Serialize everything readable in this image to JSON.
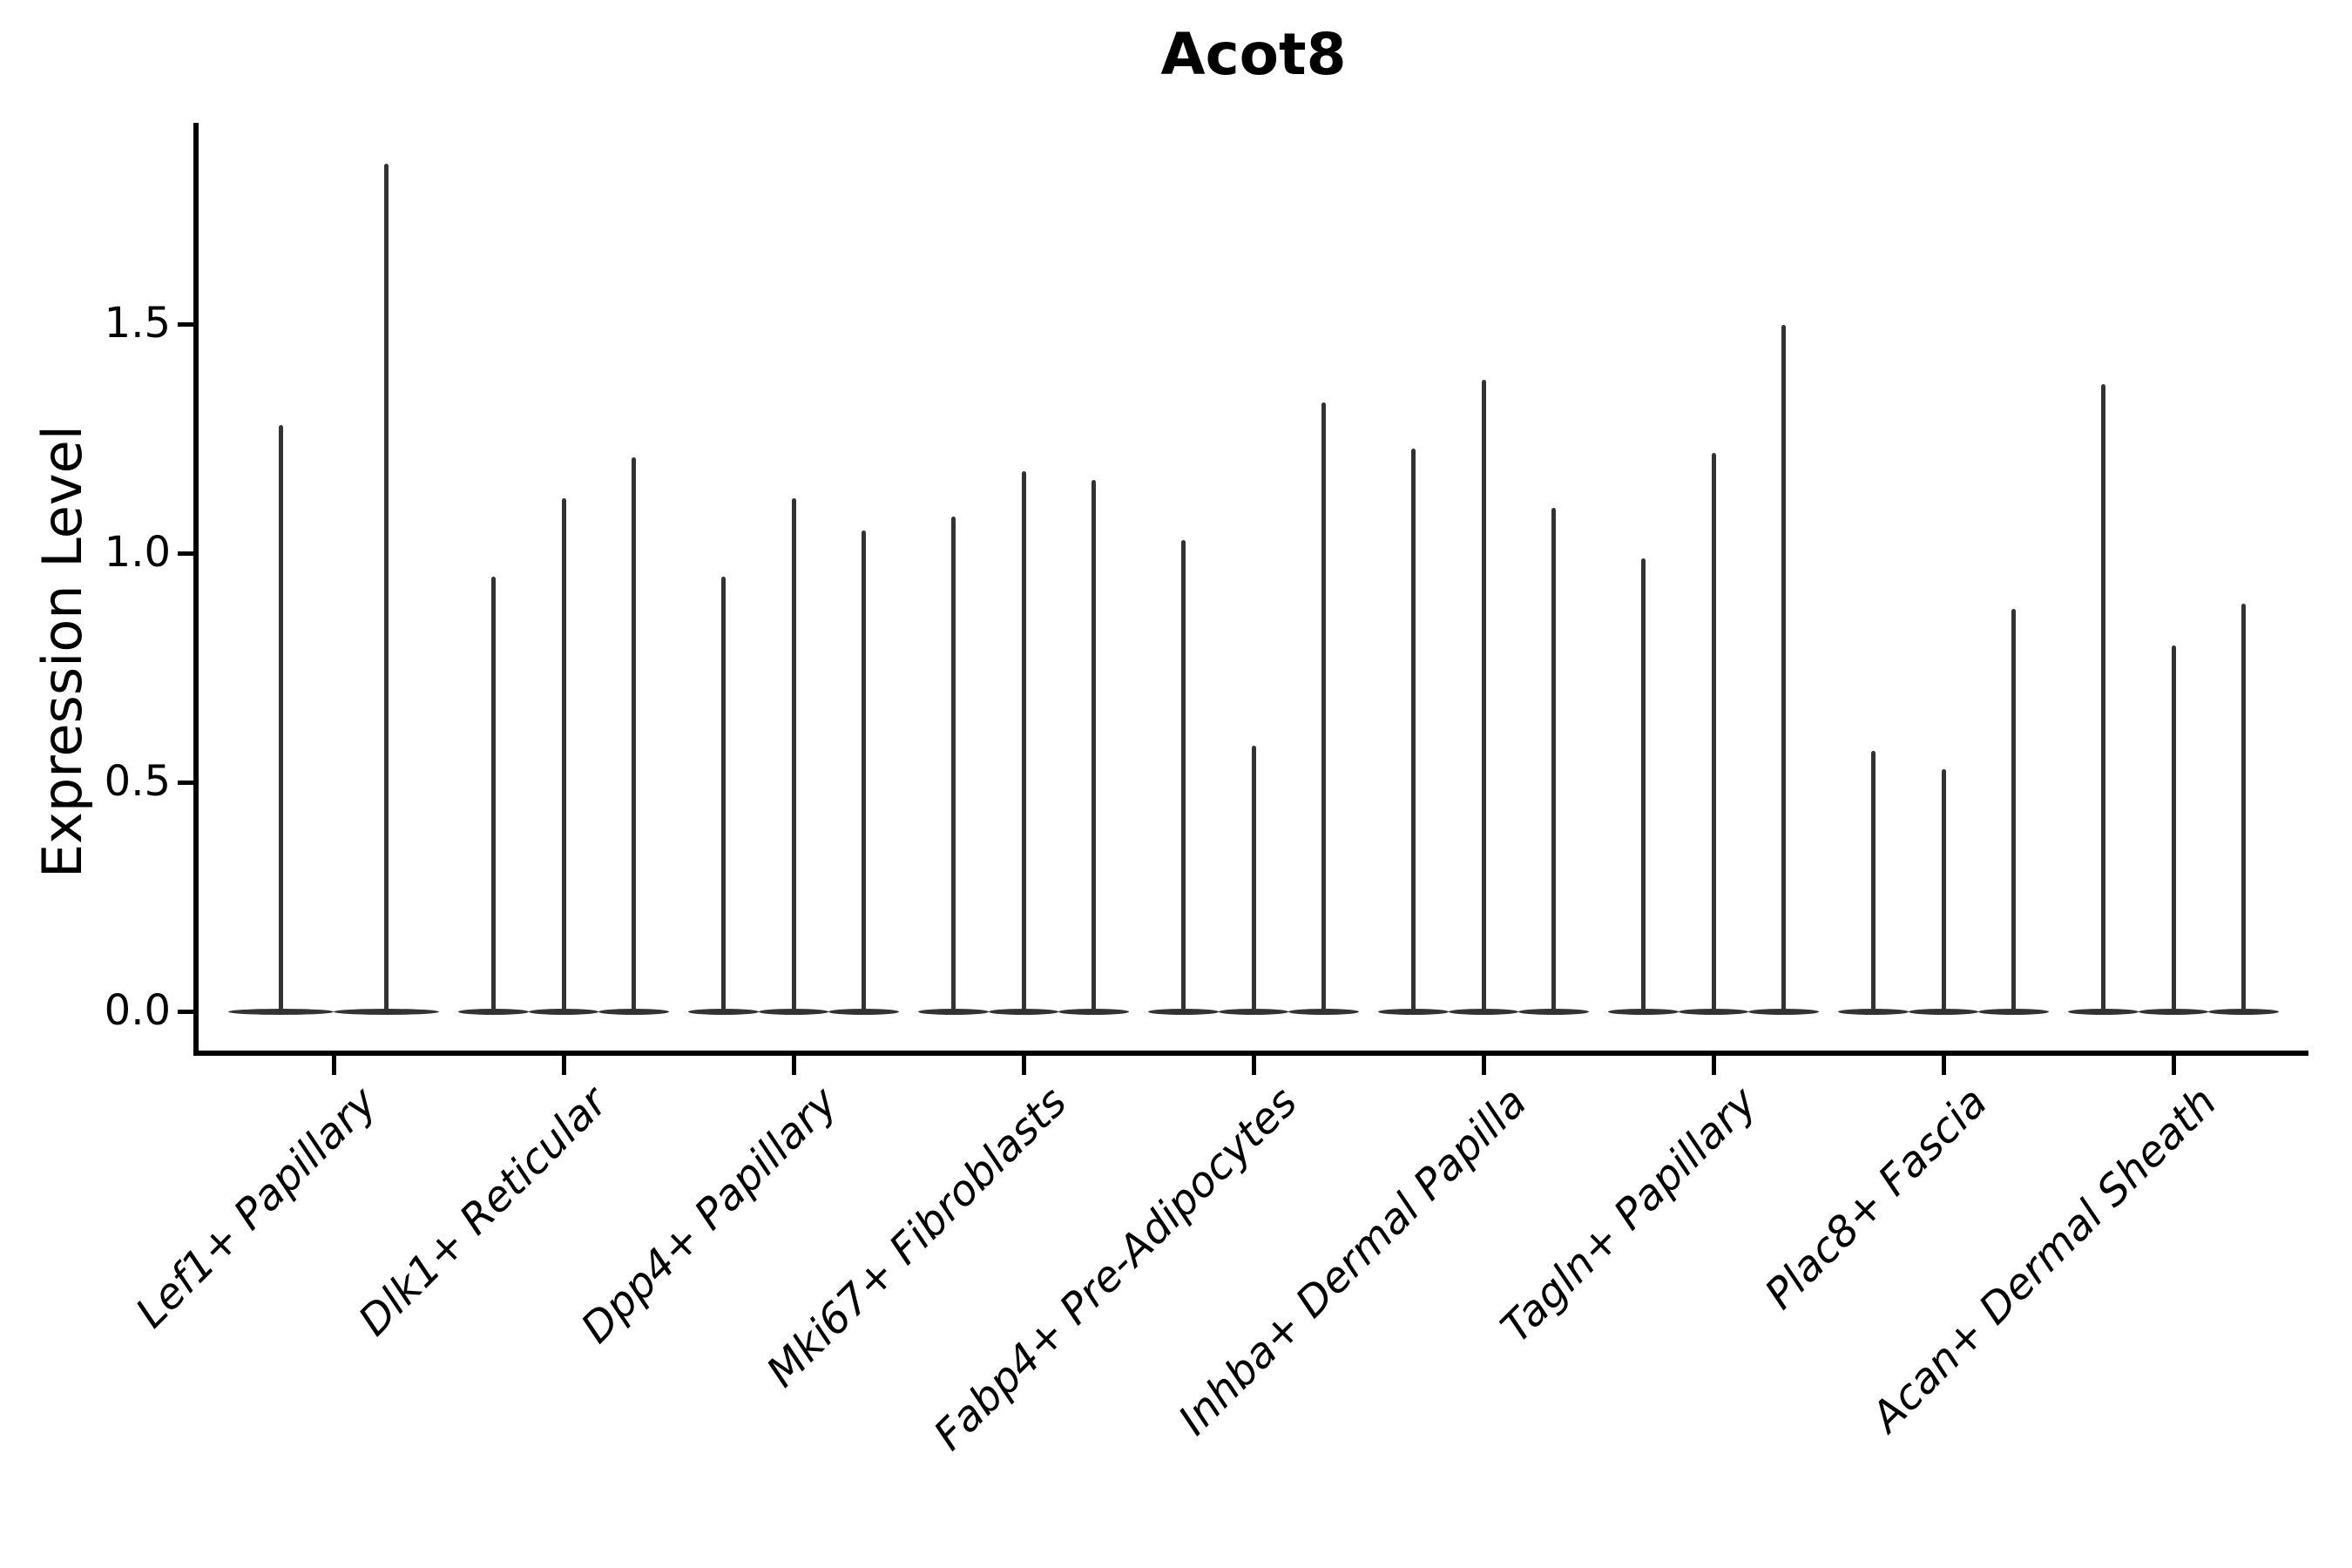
{
  "chart_data": {
    "type": "violin",
    "title": "Acot8",
    "xlabel": "",
    "ylabel": "Expression Level",
    "y_ticks": [
      {
        "value": 0.0,
        "label": "0.0"
      },
      {
        "value": 0.5,
        "label": "0.5"
      },
      {
        "value": 1.0,
        "label": "1.0"
      },
      {
        "value": 1.5,
        "label": "1.5"
      }
    ],
    "ylim": [
      -0.09,
      1.94
    ],
    "grid": false,
    "legend": false,
    "x_tick_rotation": 45,
    "violin_style": "thin-spike",
    "groups": [
      {
        "category": "Lef1+ Papillary",
        "max_values": [
          1.28,
          1.85
        ]
      },
      {
        "category": "Dlk1+ Reticular",
        "max_values": [
          0.95,
          1.12,
          1.21
        ]
      },
      {
        "category": "Dpp4+ Papillary",
        "max_values": [
          0.95,
          1.12,
          1.05
        ]
      },
      {
        "category": "Mki67+ Fibroblasts",
        "max_values": [
          1.08,
          1.18,
          1.16
        ]
      },
      {
        "category": "Fabp4+ Pre-Adipocytes",
        "max_values": [
          1.03,
          0.58,
          1.33
        ]
      },
      {
        "category": "Inhba+ Dermal Papilla",
        "max_values": [
          1.23,
          1.38,
          1.1
        ]
      },
      {
        "category": "Tagln+ Papillary",
        "max_values": [
          0.99,
          1.22,
          1.5
        ]
      },
      {
        "category": "Plac8+ Fascia",
        "max_values": [
          0.57,
          0.53,
          0.88
        ]
      },
      {
        "category": "Acan+ Dermal Sheath",
        "max_values": [
          1.37,
          0.8,
          0.89
        ]
      }
    ],
    "colors": {
      "violin": "#333333",
      "axis": "#000000",
      "text": "#000000",
      "background": "#ffffff"
    }
  }
}
